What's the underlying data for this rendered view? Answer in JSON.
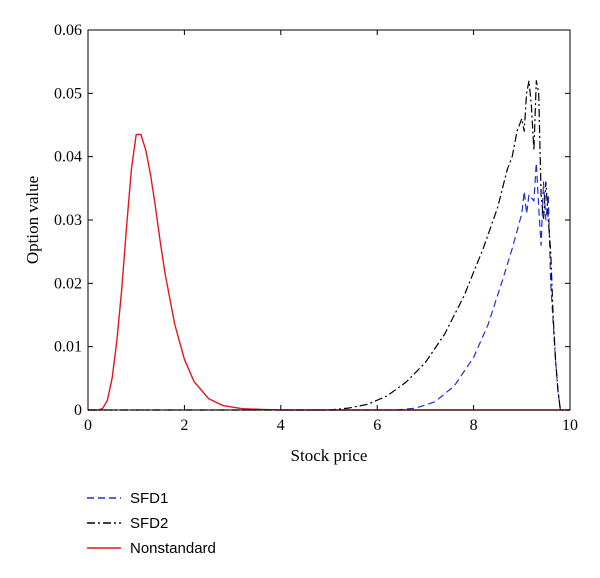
{
  "chart_data": {
    "type": "line",
    "xlabel": "Stock price",
    "ylabel": "Option value",
    "xlim": [
      0,
      10
    ],
    "ylim": [
      0,
      0.06
    ],
    "x_ticks": [
      0,
      2,
      4,
      6,
      8,
      10
    ],
    "x_tick_labels": [
      "0",
      "2",
      "4",
      "6",
      "8",
      "10"
    ],
    "y_ticks": [
      0,
      0.01,
      0.02,
      0.03,
      0.04,
      0.05,
      0.06
    ],
    "y_tick_labels": [
      "0",
      "0.01",
      "0.02",
      "0.03",
      "0.04",
      "0.05",
      "0.06"
    ],
    "grid": false,
    "legend_position": "below-left",
    "series": [
      {
        "name": "SFD1",
        "color": "#1f2fd6",
        "dash": "dashed",
        "points": [
          [
            0,
            0
          ],
          [
            6.4,
            0
          ],
          [
            6.8,
            0.0003
          ],
          [
            7.2,
            0.0013
          ],
          [
            7.6,
            0.0038
          ],
          [
            8.0,
            0.0083
          ],
          [
            8.3,
            0.0135
          ],
          [
            8.6,
            0.0205
          ],
          [
            8.8,
            0.0255
          ],
          [
            9.0,
            0.031
          ],
          [
            9.05,
            0.0345
          ],
          [
            9.1,
            0.031
          ],
          [
            9.15,
            0.034
          ],
          [
            9.25,
            0.033
          ],
          [
            9.3,
            0.039
          ],
          [
            9.35,
            0.032
          ],
          [
            9.4,
            0.026
          ],
          [
            9.45,
            0.036
          ],
          [
            9.5,
            0.03
          ],
          [
            9.55,
            0.034
          ],
          [
            9.6,
            0.02
          ],
          [
            9.65,
            0.014
          ],
          [
            9.7,
            0.008
          ],
          [
            9.75,
            0.003
          ],
          [
            9.8,
            0
          ],
          [
            10,
            0
          ]
        ]
      },
      {
        "name": "SFD2",
        "color": "#000000",
        "dash": "dashdot",
        "points": [
          [
            0,
            0
          ],
          [
            5.0,
            0
          ],
          [
            5.4,
            0.0003
          ],
          [
            5.8,
            0.0009
          ],
          [
            6.2,
            0.0022
          ],
          [
            6.6,
            0.0044
          ],
          [
            7.0,
            0.0075
          ],
          [
            7.4,
            0.012
          ],
          [
            7.8,
            0.018
          ],
          [
            8.2,
            0.0255
          ],
          [
            8.5,
            0.032
          ],
          [
            8.7,
            0.038
          ],
          [
            8.8,
            0.04
          ],
          [
            8.9,
            0.044
          ],
          [
            9.0,
            0.046
          ],
          [
            9.05,
            0.044
          ],
          [
            9.1,
            0.05
          ],
          [
            9.15,
            0.052
          ],
          [
            9.2,
            0.048
          ],
          [
            9.25,
            0.041
          ],
          [
            9.3,
            0.052
          ],
          [
            9.35,
            0.05
          ],
          [
            9.4,
            0.034
          ],
          [
            9.45,
            0.03
          ],
          [
            9.5,
            0.036
          ],
          [
            9.55,
            0.03
          ],
          [
            9.6,
            0.025
          ],
          [
            9.65,
            0.015
          ],
          [
            9.7,
            0.008
          ],
          [
            9.75,
            0.003
          ],
          [
            9.8,
            0
          ],
          [
            10,
            0
          ]
        ]
      },
      {
        "name": "Nonstandard",
        "color": "#e0181c",
        "dash": "solid",
        "points": [
          [
            0,
            0
          ],
          [
            0.2,
            0
          ],
          [
            0.3,
            0.0002
          ],
          [
            0.4,
            0.0015
          ],
          [
            0.5,
            0.005
          ],
          [
            0.6,
            0.011
          ],
          [
            0.7,
            0.019
          ],
          [
            0.8,
            0.029
          ],
          [
            0.9,
            0.038
          ],
          [
            1.0,
            0.0435
          ],
          [
            1.1,
            0.0435
          ],
          [
            1.2,
            0.041
          ],
          [
            1.3,
            0.037
          ],
          [
            1.4,
            0.032
          ],
          [
            1.5,
            0.0265
          ],
          [
            1.6,
            0.0215
          ],
          [
            1.8,
            0.0135
          ],
          [
            2.0,
            0.008
          ],
          [
            2.2,
            0.0045
          ],
          [
            2.5,
            0.0018
          ],
          [
            2.8,
            0.0007
          ],
          [
            3.2,
            0.0002
          ],
          [
            3.6,
            0.0001
          ],
          [
            4.0,
            0
          ],
          [
            10,
            0
          ]
        ]
      }
    ]
  }
}
